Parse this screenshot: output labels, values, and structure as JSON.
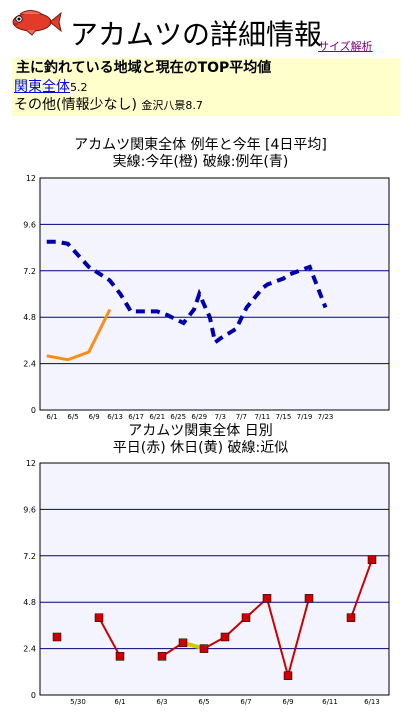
{
  "header": {
    "title": "アカムツの詳細情報",
    "size_link": "サイズ解析",
    "fish_icon": "red-fish-icon"
  },
  "info": {
    "heading": "主に釣れている地域と現在のTOP平均値",
    "region_link": "関東全体",
    "region_value": "5.2",
    "other_label": "その他(情報少なし)",
    "other_detail": "金沢八景8.7"
  },
  "charts": {
    "chart1_title_line1": "アカムツ関東全体  例年と今年 [4日平均]",
    "chart1_title_line2": "実線:今年(橙)  破線:例年(青)",
    "chart2_title_line1": "アカムツ関東全体  日別",
    "chart2_title_line2": "平日(赤)  休日(黄)  破線:近似"
  },
  "colors": {
    "this_year": "#ff8c1a",
    "normal_year": "#0000aa",
    "weekday": "#cc0000",
    "holiday": "#cccc00",
    "grid": "#000080",
    "plot_bg": "#f4f4ff",
    "info_bg": "#ffffcc"
  },
  "chart_data": [
    {
      "type": "line",
      "title": "アカムツ関東全体  例年と今年 [4日平均]",
      "subtitle": "実線:今年(橙)  破線:例年(青)",
      "ylim": [
        0,
        12
      ],
      "yticks": [
        "0",
        "2.4",
        "4.8",
        "7.2",
        "9.6",
        "12"
      ],
      "xticks": [
        "6/1",
        "6/5",
        "6/9",
        "6/13",
        "6/17",
        "6/21",
        "6/25",
        "6/29",
        "7/3",
        "7/7",
        "7/11",
        "7/15",
        "7/19",
        "7/23"
      ],
      "grid": true,
      "series": [
        {
          "name": "今年(橙)",
          "style": "solid",
          "x": [
            "5/31",
            "6/4",
            "6/8",
            "6/12"
          ],
          "values": [
            2.8,
            2.6,
            3.0,
            5.2
          ]
        },
        {
          "name": "例年(青)",
          "style": "dashed",
          "x": [
            "5/31",
            "6/2",
            "6/4",
            "6/8",
            "6/12",
            "6/14",
            "6/16",
            "6/18",
            "6/21",
            "6/23",
            "6/26",
            "6/28",
            "6/29",
            "6/31",
            "7/2",
            "7/3",
            "7/6",
            "7/8",
            "7/11",
            "7/12",
            "7/15",
            "7/16",
            "7/20",
            "7/23"
          ],
          "values": [
            8.7,
            8.7,
            8.6,
            7.4,
            6.7,
            6.0,
            5.1,
            5.1,
            5.1,
            4.9,
            4.5,
            5.2,
            6.0,
            4.8,
            3.5,
            3.7,
            4.2,
            5.3,
            6.3,
            6.5,
            6.8,
            7.0,
            7.4,
            5.3
          ]
        }
      ]
    },
    {
      "type": "line",
      "title": "アカムツ関東全体  日別",
      "subtitle": "平日(赤)  休日(黄)  破線:近似",
      "ylim": [
        0,
        12
      ],
      "yticks": [
        "0",
        "2.4",
        "4.8",
        "7.2",
        "9.6",
        "12"
      ],
      "xticks": [
        "5/30",
        "6/1",
        "6/3",
        "6/5",
        "6/7",
        "6/9",
        "6/11",
        "6/13"
      ],
      "grid": true,
      "series": [
        {
          "name": "平日(赤)",
          "points": [
            {
              "x": "5/29",
              "y": 3.0
            },
            {
              "x": "5/31",
              "y": 4.0
            },
            {
              "x": "6/1",
              "y": 2.0
            },
            {
              "x": "6/3",
              "y": 2.0
            },
            {
              "x": "6/4",
              "y": 2.7
            },
            {
              "x": "6/5",
              "y": 2.4
            },
            {
              "x": "6/6",
              "y": 3.0
            },
            {
              "x": "6/7",
              "y": 4.0
            },
            {
              "x": "6/8",
              "y": 5.0
            },
            {
              "x": "6/9",
              "y": 1.0
            },
            {
              "x": "6/10",
              "y": 5.0
            },
            {
              "x": "6/12",
              "y": 4.0
            },
            {
              "x": "6/13",
              "y": 7.0
            }
          ]
        },
        {
          "name": "休日(黄)",
          "points": [
            {
              "x": "6/4",
              "y": 2.7
            },
            {
              "x": "6/5",
              "y": 2.4
            }
          ]
        }
      ]
    }
  ]
}
